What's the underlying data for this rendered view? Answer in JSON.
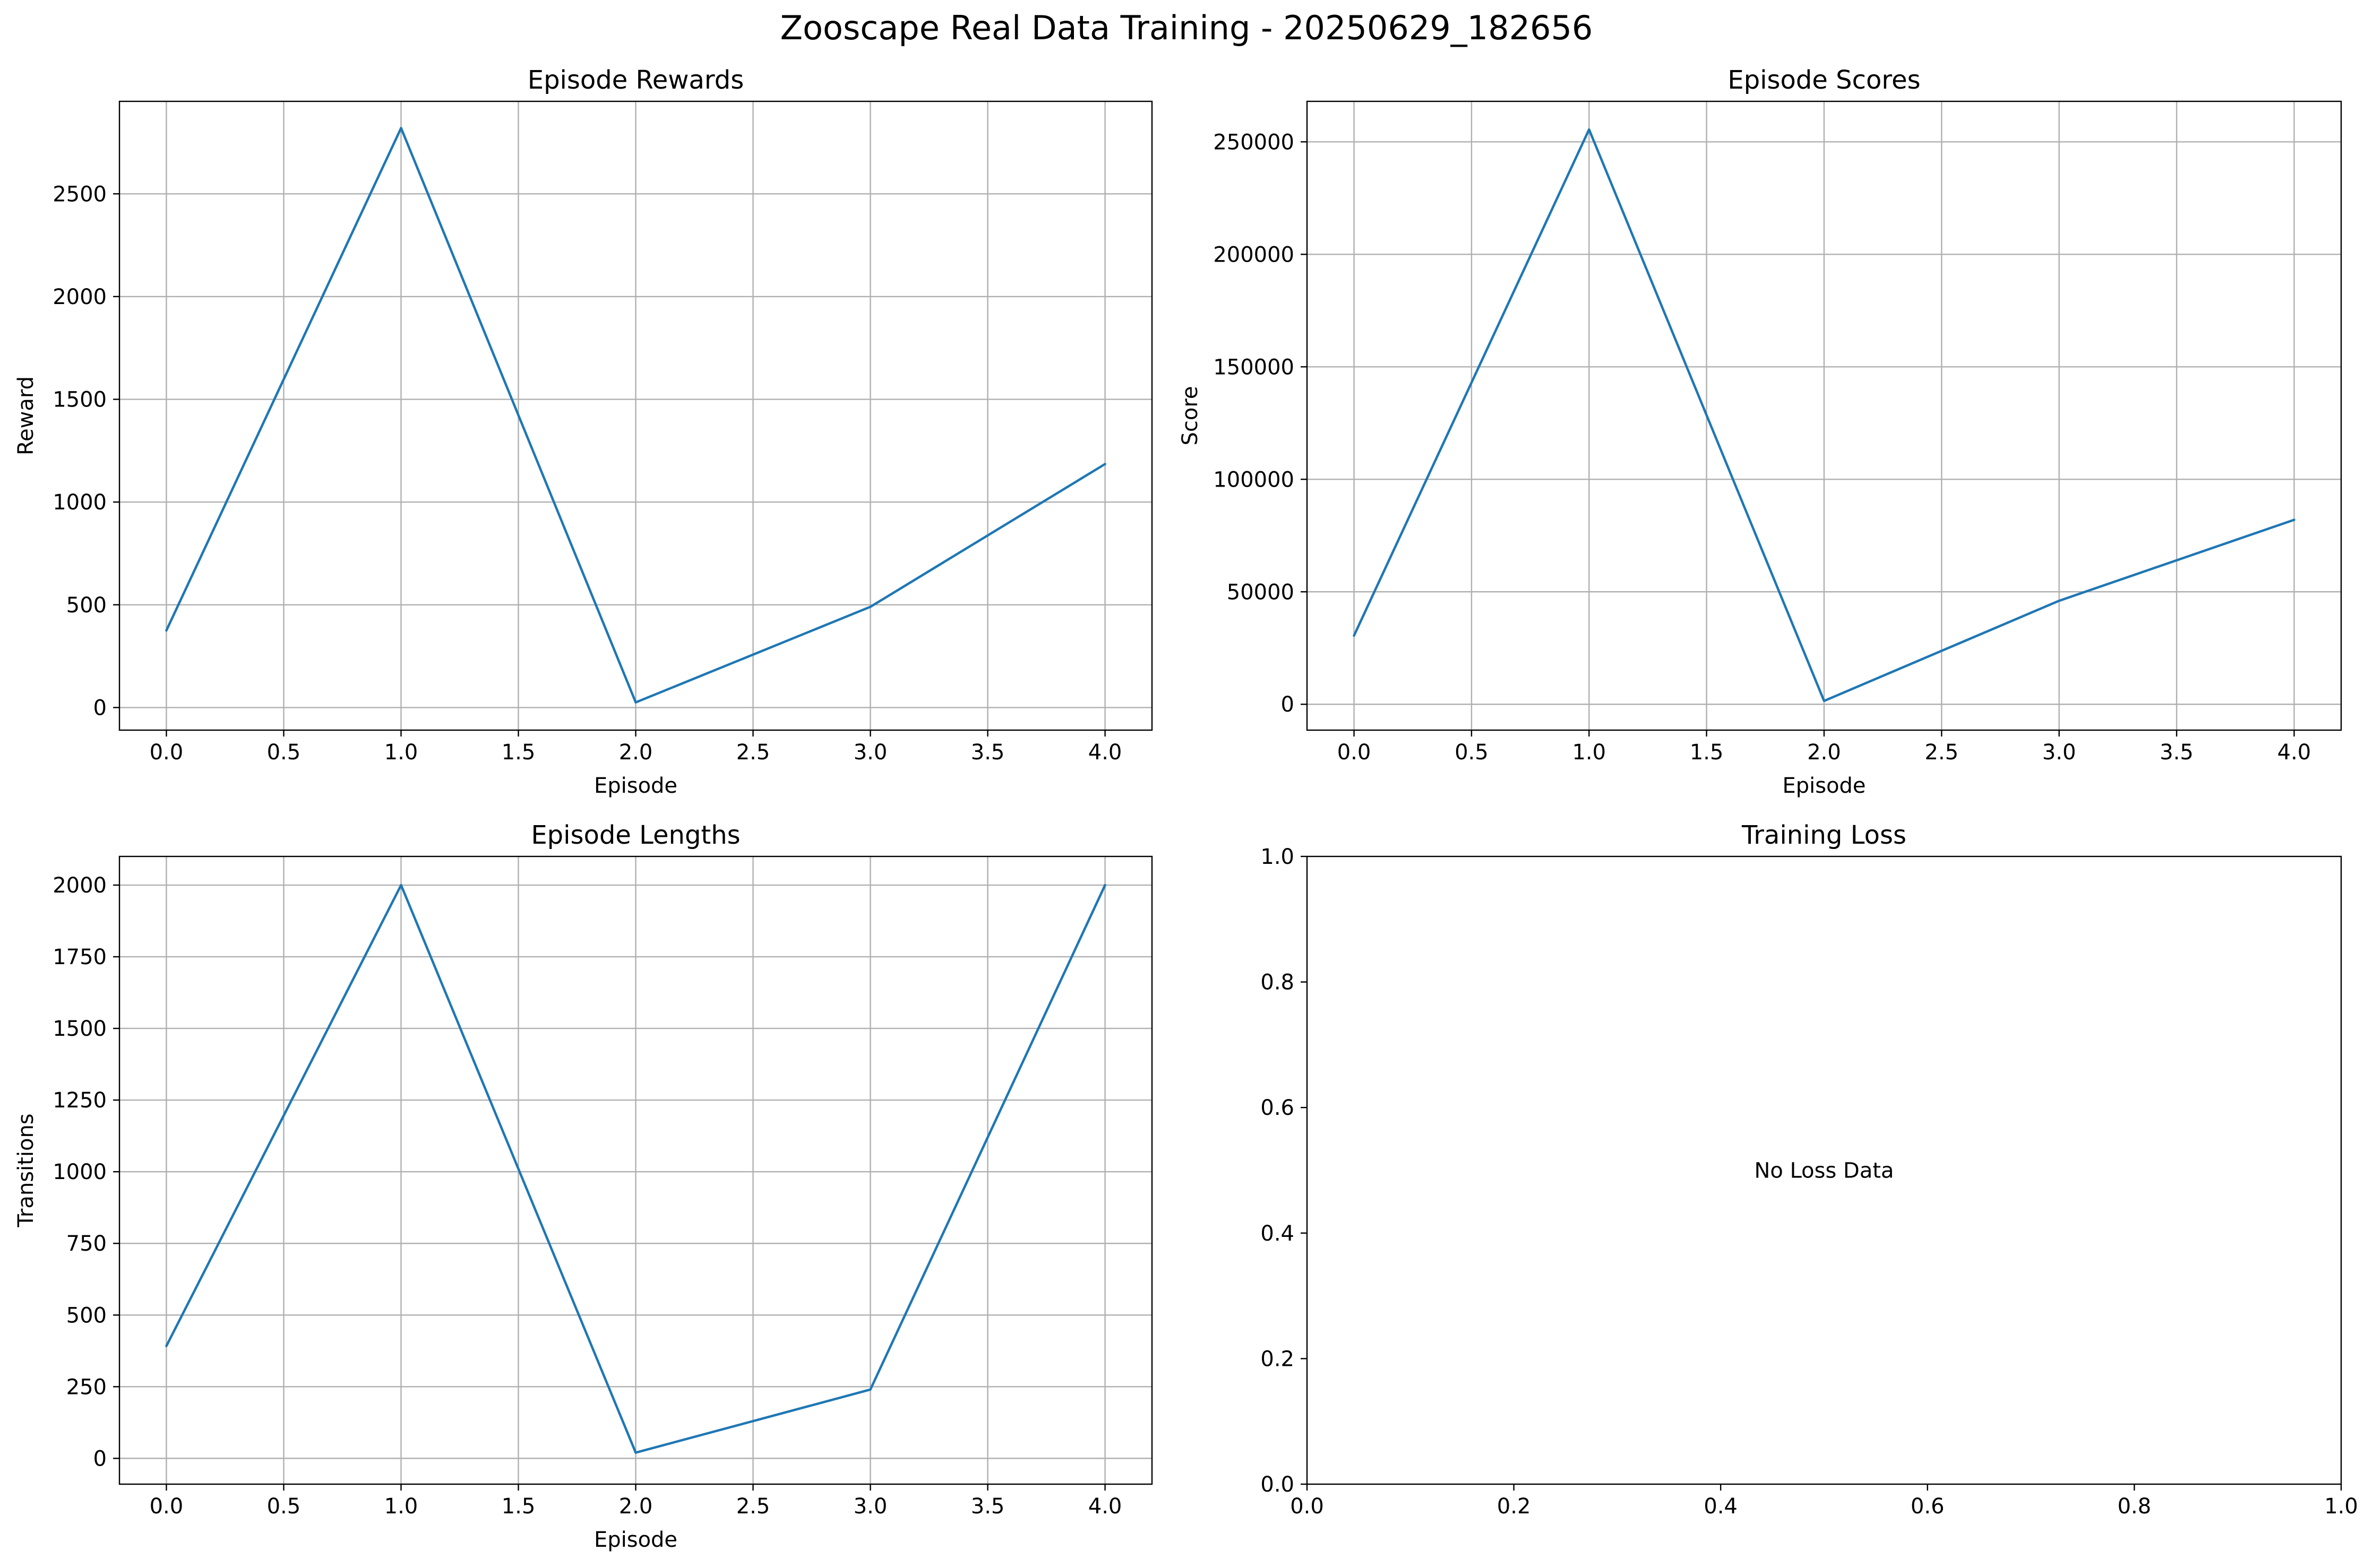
{
  "figure": {
    "title": "Zooscape Real Data Training - 20250629_182656"
  },
  "colors": {
    "series_line": "#1f77b4",
    "grid": "#b0b0b0",
    "axes": "#000000",
    "background": "#ffffff"
  },
  "chart_data": [
    {
      "id": "rewards",
      "type": "line",
      "title": "Episode Rewards",
      "xlabel": "Episode",
      "ylabel": "Reward",
      "x": [
        0,
        1,
        2,
        3,
        4
      ],
      "y": [
        375,
        2820,
        25,
        490,
        1185
      ],
      "xlim": [
        -0.2,
        4.2
      ],
      "ylim": [
        -110,
        2950
      ],
      "xticks": [
        0,
        0.5,
        1,
        1.5,
        2,
        2.5,
        3,
        3.5,
        4
      ],
      "xtick_labels": [
        "0.0",
        "0.5",
        "1.0",
        "1.5",
        "2.0",
        "2.5",
        "3.0",
        "3.5",
        "4.0"
      ],
      "yticks": [
        0,
        500,
        1000,
        1500,
        2000,
        2500
      ],
      "ytick_labels": [
        "0",
        "500",
        "1000",
        "1500",
        "2000",
        "2500"
      ],
      "grid": true,
      "note": ""
    },
    {
      "id": "scores",
      "type": "line",
      "title": "Episode Scores",
      "xlabel": "Episode",
      "ylabel": "Score",
      "x": [
        0,
        1,
        2,
        3,
        4
      ],
      "y": [
        30500,
        255500,
        1500,
        46000,
        82000
      ],
      "xlim": [
        -0.2,
        4.2
      ],
      "ylim": [
        -11500,
        268000
      ],
      "xticks": [
        0,
        0.5,
        1,
        1.5,
        2,
        2.5,
        3,
        3.5,
        4
      ],
      "xtick_labels": [
        "0.0",
        "0.5",
        "1.0",
        "1.5",
        "2.0",
        "2.5",
        "3.0",
        "3.5",
        "4.0"
      ],
      "yticks": [
        0,
        50000,
        100000,
        150000,
        200000,
        250000
      ],
      "ytick_labels": [
        "0",
        "50000",
        "100000",
        "150000",
        "200000",
        "250000"
      ],
      "grid": true,
      "note": ""
    },
    {
      "id": "lengths",
      "type": "line",
      "title": "Episode Lengths",
      "xlabel": "Episode",
      "ylabel": "Transitions",
      "x": [
        0,
        1,
        2,
        3,
        4
      ],
      "y": [
        392,
        2000,
        20,
        240,
        2000
      ],
      "xlim": [
        -0.2,
        4.2
      ],
      "ylim": [
        -90,
        2100
      ],
      "xticks": [
        0,
        0.5,
        1,
        1.5,
        2,
        2.5,
        3,
        3.5,
        4
      ],
      "xtick_labels": [
        "0.0",
        "0.5",
        "1.0",
        "1.5",
        "2.0",
        "2.5",
        "3.0",
        "3.5",
        "4.0"
      ],
      "yticks": [
        0,
        250,
        500,
        750,
        1000,
        1250,
        1500,
        1750,
        2000
      ],
      "ytick_labels": [
        "0",
        "250",
        "500",
        "750",
        "1000",
        "1250",
        "1500",
        "1750",
        "2000"
      ],
      "grid": true,
      "note": ""
    },
    {
      "id": "loss",
      "type": "line",
      "title": "Training Loss",
      "xlabel": "",
      "ylabel": "",
      "x": [],
      "y": [],
      "xlim": [
        0,
        1
      ],
      "ylim": [
        0,
        1
      ],
      "xticks": [
        0,
        0.2,
        0.4,
        0.6,
        0.8,
        1.0
      ],
      "xtick_labels": [
        "0.0",
        "0.2",
        "0.4",
        "0.6",
        "0.8",
        "1.0"
      ],
      "yticks": [
        0,
        0.2,
        0.4,
        0.6,
        0.8,
        1.0
      ],
      "ytick_labels": [
        "0.0",
        "0.2",
        "0.4",
        "0.6",
        "0.8",
        "1.0"
      ],
      "grid": false,
      "note": "No Loss Data"
    }
  ]
}
